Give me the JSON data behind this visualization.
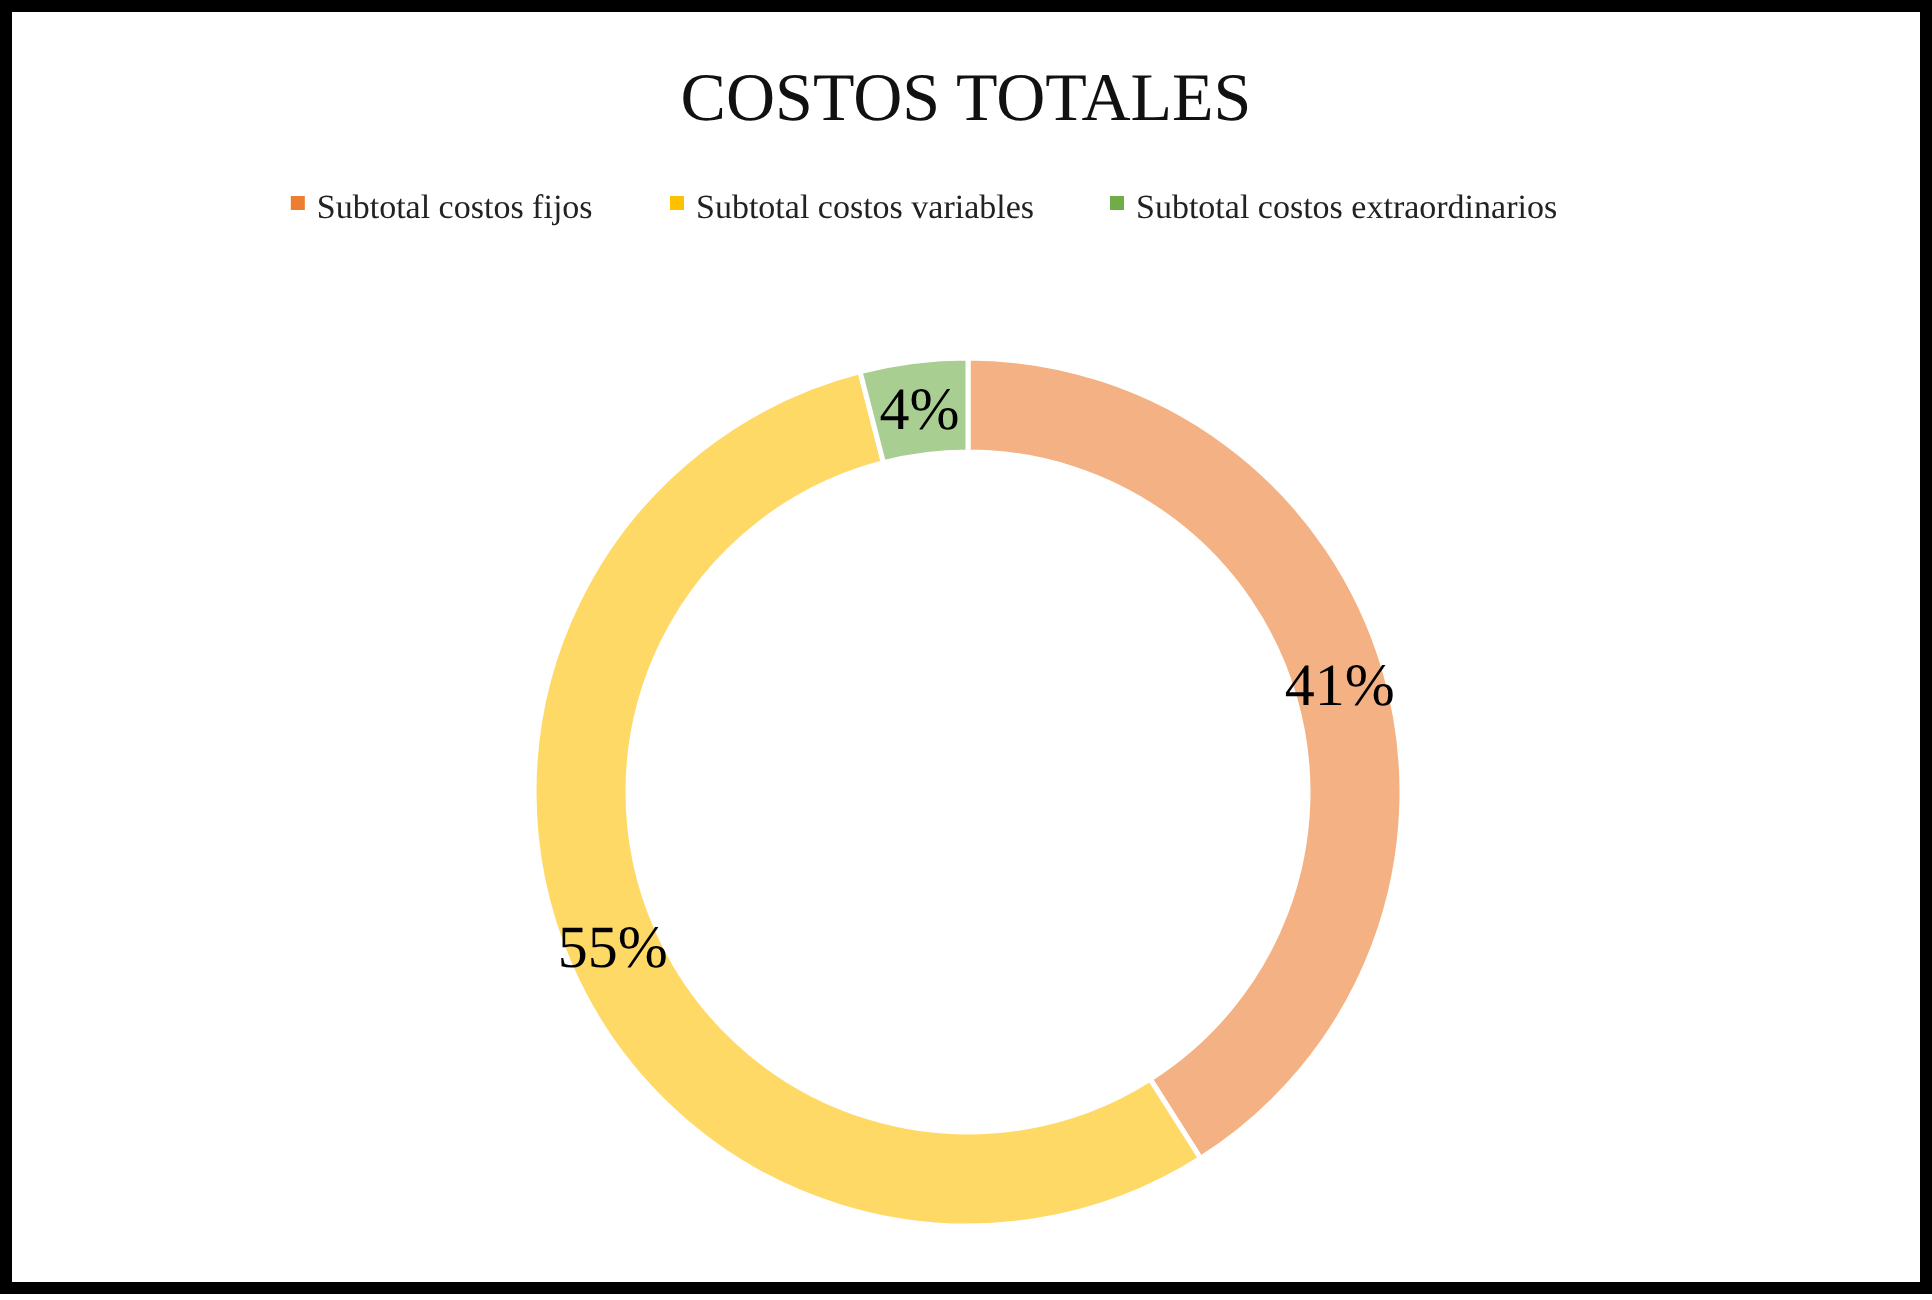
{
  "chart_data": {
    "type": "donut",
    "title": "COSTOS TOTALES",
    "categories": [
      "Subtotal costos fijos",
      "Subtotal costos variables",
      "Subtotal costos extraordinarios"
    ],
    "values": [
      41,
      55,
      4
    ],
    "colors": [
      "#ed7d31",
      "#ffc000",
      "#70ad47"
    ],
    "value_labels": [
      "41%",
      "55%",
      "4%"
    ],
    "legend": "top"
  }
}
